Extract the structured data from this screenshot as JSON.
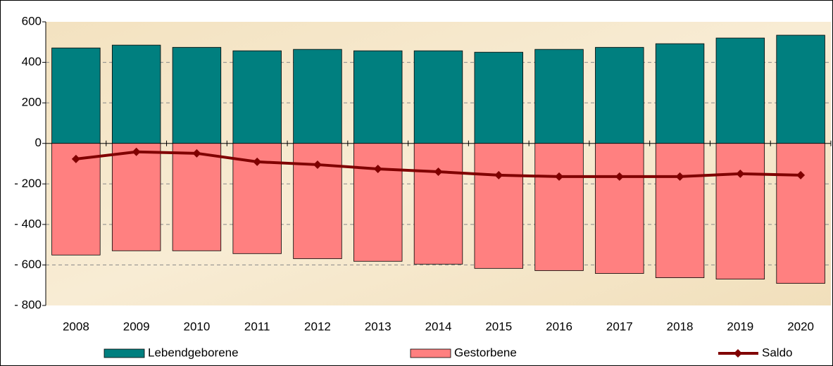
{
  "chart_data": {
    "type": "bar_line",
    "categories": [
      "2008",
      "2009",
      "2010",
      "2011",
      "2012",
      "2013",
      "2014",
      "2015",
      "2016",
      "2017",
      "2018",
      "2019",
      "2020"
    ],
    "series": [
      {
        "name": "Lebendgeborene",
        "type": "bar",
        "color": "#007f7f",
        "values": [
          471,
          485,
          474,
          457,
          464,
          457,
          457,
          450,
          464,
          474,
          492,
          520,
          534
        ]
      },
      {
        "name": "Gestorbene",
        "type": "bar",
        "color": "#ff8080",
        "values": [
          -551,
          -530,
          -530,
          -544,
          -569,
          -582,
          -596,
          -617,
          -628,
          -642,
          -663,
          -670,
          -691
        ]
      },
      {
        "name": "Saldo",
        "type": "line",
        "color": "#800000",
        "values": [
          -77,
          -42,
          -49,
          -91,
          -105,
          -126,
          -140,
          -157,
          -164,
          -164,
          -164,
          -150,
          -157
        ]
      }
    ],
    "ylim": [
      -800,
      600
    ],
    "yticks": [
      {
        "value": -800,
        "label": "- 800"
      },
      {
        "value": -600,
        "label": "- 600"
      },
      {
        "value": -400,
        "label": "- 400"
      },
      {
        "value": -200,
        "label": "- 200"
      },
      0,
      200,
      400,
      600
    ],
    "grid": true
  }
}
